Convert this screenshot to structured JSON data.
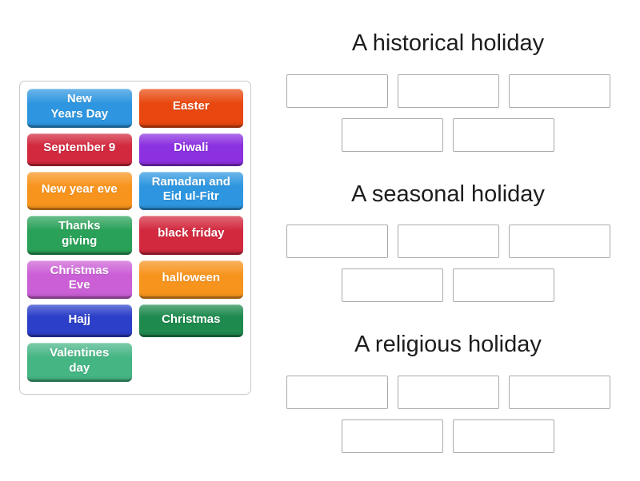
{
  "activity": {
    "type_label": "group-sort",
    "tile_panel": {
      "tiles": [
        {
          "label": "New\nYears Day",
          "color": "#2e96e0"
        },
        {
          "label": "Easter",
          "color": "#e8480f"
        },
        {
          "label": "September 9",
          "color": "#d2293e"
        },
        {
          "label": "Diwali",
          "color": "#8b31e0"
        },
        {
          "label": "New year eve",
          "color": "#f7941d"
        },
        {
          "label": "Ramadan and\nEid ul-Fitr",
          "color": "#2e96e0"
        },
        {
          "label": "Thanks\ngiving",
          "color": "#29a158"
        },
        {
          "label": "black friday",
          "color": "#d2293e"
        },
        {
          "label": "Christmas\nEve",
          "color": "#cb5fd6"
        },
        {
          "label": "halloween",
          "color": "#f7941d"
        },
        {
          "label": "Hajj",
          "color": "#2b3fc8"
        },
        {
          "label": "Christmas",
          "color": "#1f8a4e"
        },
        {
          "label": "Valentines\nday",
          "color": "#45b584"
        }
      ]
    },
    "groups": [
      {
        "title": "A historical holiday",
        "slot_rows": [
          3,
          2
        ]
      },
      {
        "title": "A seasonal holiday",
        "slot_rows": [
          3,
          2
        ]
      },
      {
        "title": "A religious holiday",
        "slot_rows": [
          3,
          2
        ]
      }
    ]
  }
}
